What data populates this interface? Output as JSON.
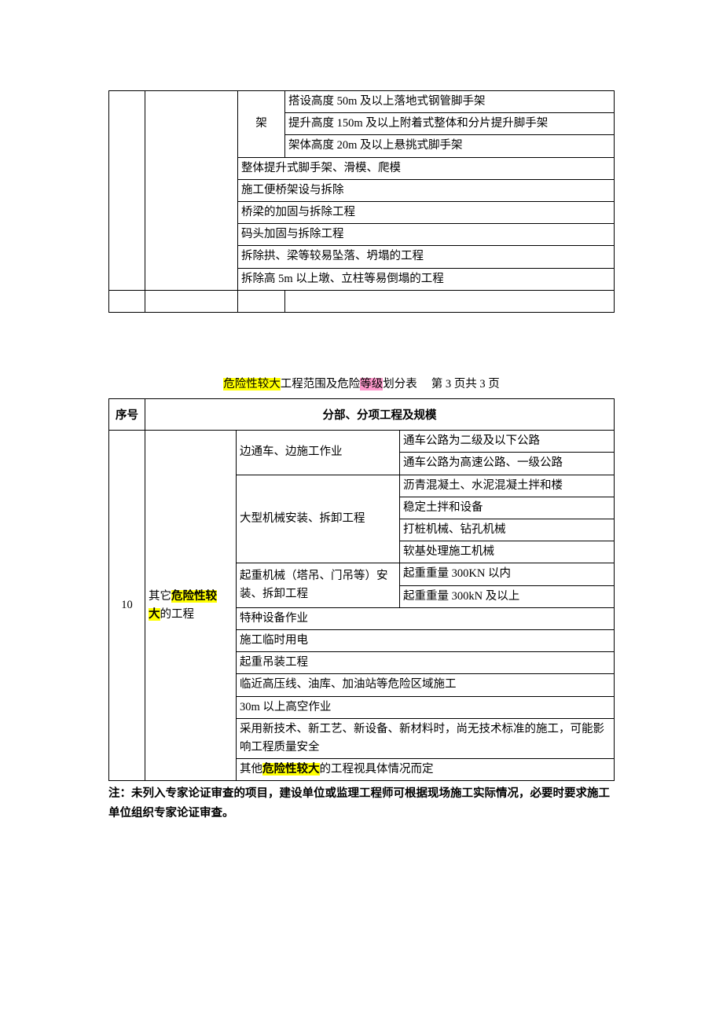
{
  "table1": {
    "rows": [
      {
        "c2": "架",
        "c3": "搭设高度 50m 及以上落地式钢管脚手架"
      },
      {
        "c3": "提升高度 150m 及以上附着式整体和分片提升脚手架"
      },
      {
        "c3": "架体高度 20m 及以上悬挑式脚手架"
      },
      {
        "c2span": "整体提升式脚手架、滑模、爬模"
      },
      {
        "c2span": "施工便桥架设与拆除"
      },
      {
        "c2span": "桥梁的加固与拆除工程"
      },
      {
        "c2span": "码头加固与拆除工程"
      },
      {
        "c2span": "拆除拱、梁等较易坠落、坍塌的工程"
      },
      {
        "c2span": "拆除高 5m 以上墩、立柱等易倒塌的工程"
      }
    ]
  },
  "caption": {
    "prefix": "危险性较大",
    "middle": "工程范围及危险",
    "pink": "等级",
    "suffix": "划分表",
    "page": "第 3 页共 3 页",
    "highlight_yellow": "#ffff00",
    "highlight_pink": "#ff99cc"
  },
  "table2": {
    "header_num": "序号",
    "header_main": "分部、分项工程及规模",
    "num": "10",
    "category_pre": "其它",
    "category_hl1": "危险性较",
    "category_hl2": "大",
    "category_suf": "的工程",
    "rows": [
      {
        "sub": "边通车、边施工作业",
        "detail": "通车公路为二级及以下公路",
        "subrowspan": 2
      },
      {
        "detail": "通车公路为高速公路、一级公路"
      },
      {
        "sub": "大型机械安装、拆卸工程",
        "detail": "沥青混凝土、水泥混凝土拌和楼",
        "subrowspan": 4
      },
      {
        "detail": "稳定土拌和设备"
      },
      {
        "detail": "打桩机械、钻孔机械"
      },
      {
        "detail": "软基处理施工机械"
      },
      {
        "sub": "起重机械（塔吊、门吊等）安装、拆卸工程",
        "detail": "起重重量 300KN 以内",
        "subrowspan": 2
      },
      {
        "detail": "起重重量 300kN 及以上"
      },
      {
        "subspan": "特种设备作业"
      },
      {
        "subspan": "施工临时用电"
      },
      {
        "subspan": "起重吊装工程"
      },
      {
        "subspan": "临近高压线、油库、加油站等危险区域施工"
      },
      {
        "subspan": "30m 以上高空作业"
      },
      {
        "subspan": "采用新技术、新工艺、新设备、新材料时，尚无技术标准的施工，可能影响工程质量安全"
      },
      {
        "subspan_pre": "其他",
        "subspan_hl": "危险性较大",
        "subspan_suf": "的工程视具体情况而定"
      }
    ]
  },
  "note": "注：未列入专家论证审查的项目，建设单位或监理工程师可根据现场施工实际情况，必要时要求施工单位组织专家论证审查。",
  "colors": {
    "border": "#000000",
    "background": "#ffffff",
    "highlight_yellow": "#ffff00",
    "highlight_pink": "#ff99cc"
  },
  "fontsize": 14.5
}
